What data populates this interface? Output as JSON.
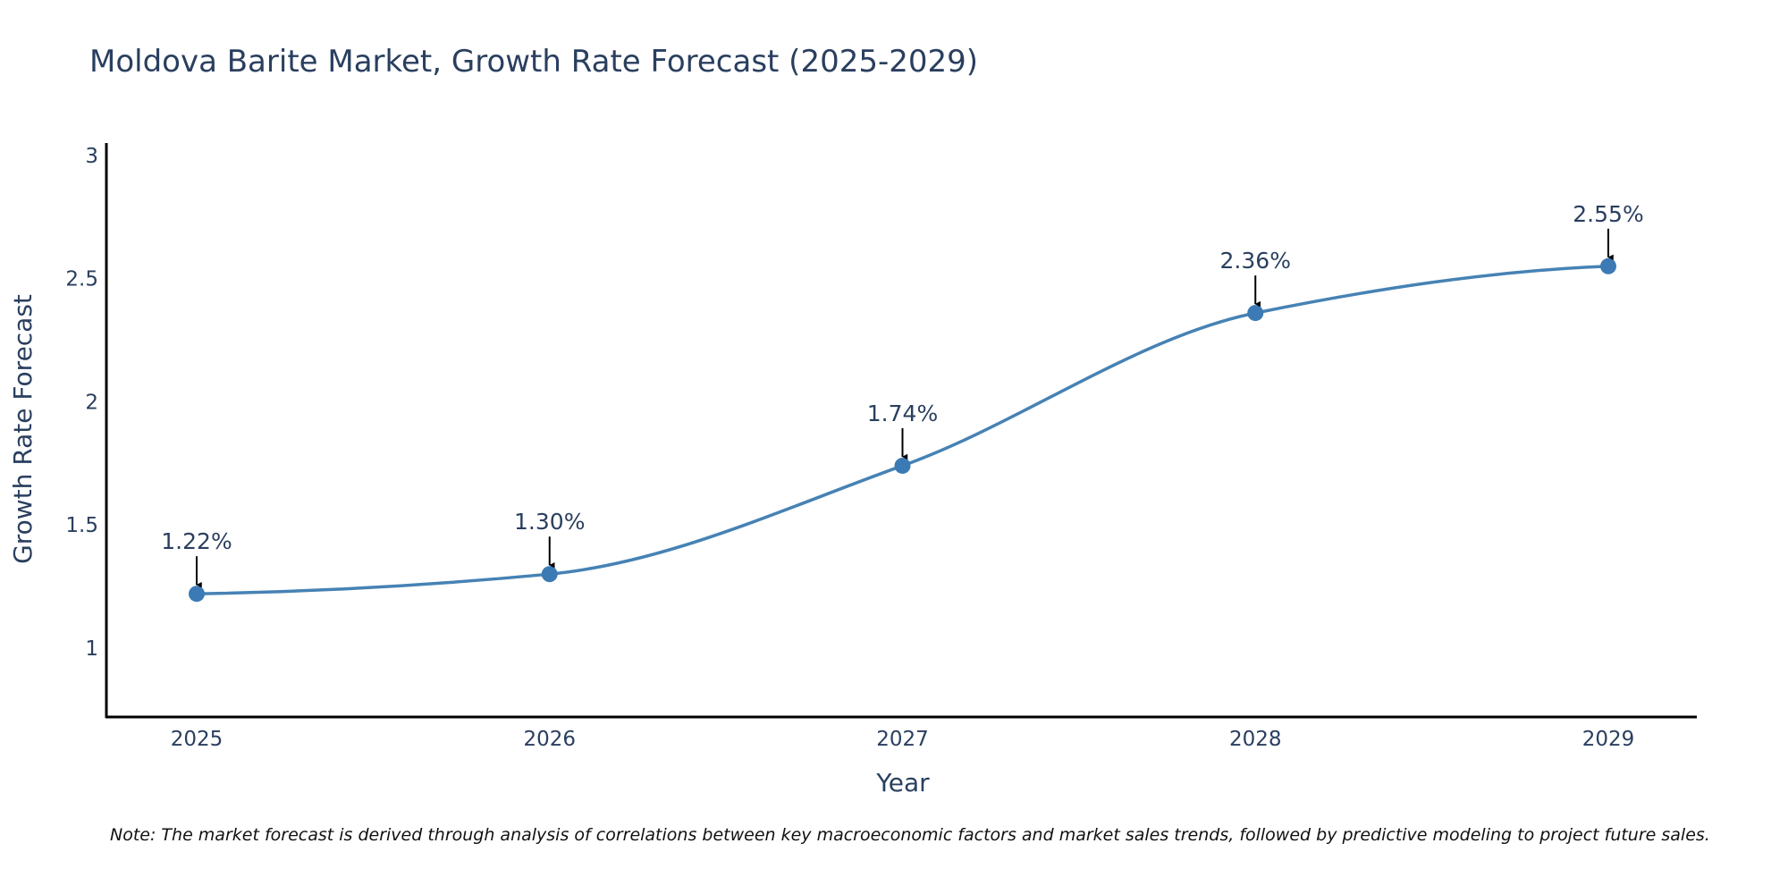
{
  "colors": {
    "line": "#4682b4",
    "marker": "#3b7ab4",
    "arrow": "#000000",
    "text": "#2a3f5f",
    "axis": "#000000"
  },
  "chart_data": {
    "type": "line",
    "title": "Moldova Barite Market, Growth Rate Forecast (2025-2029)",
    "xlabel": "Year",
    "ylabel": "Growth Rate Forecast",
    "categories": [
      "2025",
      "2026",
      "2027",
      "2028",
      "2029"
    ],
    "series": [
      {
        "name": "Growth Rate Forecast",
        "values": [
          1.22,
          1.3,
          1.74,
          2.36,
          2.55
        ]
      }
    ],
    "data_labels": [
      "1.22%",
      "1.30%",
      "1.74%",
      "2.36%",
      "2.55%"
    ],
    "ylim": [
      0.72,
      3.05
    ],
    "yticks": [
      1,
      1.5,
      2,
      2.5,
      3
    ],
    "ytick_labels": [
      "1",
      "1.5",
      "2",
      "2.5",
      "3"
    ],
    "grid": false,
    "line_shape": "spline"
  },
  "note": "Note: The market forecast is derived through analysis of correlations between key macroeconomic factors and market sales trends, followed by predictive modeling to project future sales."
}
